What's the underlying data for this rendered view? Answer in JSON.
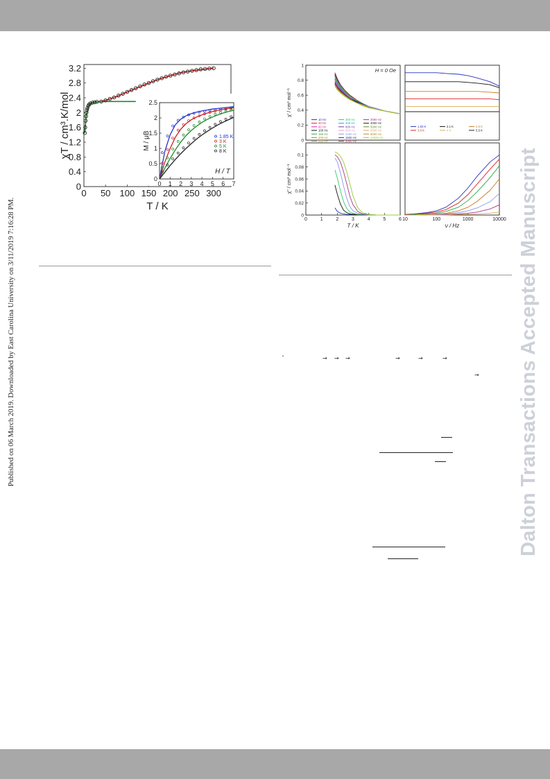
{
  "page": {
    "side_note": "Published on 06 March 2019. Downloaded by East Carolina University on 3/11/2019 7:16:28 PM.",
    "watermark": "Dalton Transactions Accepted Manuscript",
    "colors": {
      "header_bar": "#a8a8a8",
      "watermark": "#cdd0d8"
    }
  },
  "chart_data": [
    {
      "type": "scatter",
      "xlabel": "T / K",
      "ylabel": "χT / cm³.K/mol",
      "xlim": [
        0,
        340
      ],
      "ylim": [
        0,
        3.3
      ],
      "xticks": [
        "0",
        "50",
        "100",
        "150",
        "200",
        "250",
        "300"
      ],
      "yticks": [
        "0",
        "0.4",
        "0.8",
        "1.2",
        "1.6",
        "2",
        "2.4",
        "2.8",
        "3.2"
      ],
      "series": [
        {
          "color": "#222222",
          "markers": "open-circle",
          "x": [
            2,
            3,
            4,
            5,
            6,
            7,
            8,
            10,
            12,
            15,
            20,
            25,
            30,
            40,
            50,
            60,
            70,
            80,
            90,
            100,
            110,
            120,
            130,
            140,
            150,
            160,
            170,
            180,
            190,
            200,
            210,
            220,
            230,
            240,
            250,
            260,
            270,
            280,
            290,
            300
          ],
          "y": [
            1.45,
            1.6,
            1.78,
            1.9,
            2.0,
            2.07,
            2.12,
            2.18,
            2.22,
            2.25,
            2.27,
            2.28,
            2.29,
            2.3,
            2.33,
            2.37,
            2.41,
            2.46,
            2.51,
            2.56,
            2.61,
            2.66,
            2.71,
            2.76,
            2.8,
            2.85,
            2.89,
            2.93,
            2.97,
            3.0,
            3.03,
            3.06,
            3.09,
            3.11,
            3.13,
            3.15,
            3.17,
            3.18,
            3.19,
            3.2
          ]
        },
        {
          "color": "#cc2222",
          "line": true,
          "x": [
            2,
            5,
            10,
            15,
            20,
            30,
            40,
            50,
            75,
            100,
            125,
            150,
            175,
            200,
            225,
            250,
            275,
            300
          ],
          "y": [
            1.45,
            1.9,
            2.18,
            2.25,
            2.27,
            2.29,
            2.3,
            2.33,
            2.43,
            2.56,
            2.68,
            2.8,
            2.91,
            3.0,
            3.08,
            3.13,
            3.17,
            3.2
          ]
        },
        {
          "color": "#1a8a2a",
          "line": true,
          "x": [
            2,
            5,
            10,
            15,
            20,
            30,
            50,
            80,
            120
          ],
          "y": [
            1.45,
            1.9,
            2.18,
            2.25,
            2.27,
            2.29,
            2.3,
            2.3,
            2.3
          ]
        }
      ]
    },
    {
      "type": "line",
      "xlabel": "H / T",
      "ylabel": "M / μB",
      "xlim": [
        0,
        7
      ],
      "ylim": [
        0,
        2.5
      ],
      "xticks": [
        "0",
        "1",
        "2",
        "3",
        "4",
        "5",
        "6",
        "7"
      ],
      "yticks": [
        "0",
        "0.5",
        "1",
        "1.5",
        "2",
        "2.5"
      ],
      "x": [
        0,
        0.5,
        1,
        1.5,
        2,
        2.5,
        3,
        3.5,
        4,
        4.5,
        5,
        5.5,
        6,
        6.5,
        7
      ],
      "series": [
        {
          "name": "1.85 K",
          "color": "#2233cc",
          "y": [
            0,
            0.9,
            1.45,
            1.78,
            1.96,
            2.07,
            2.14,
            2.19,
            2.23,
            2.26,
            2.29,
            2.31,
            2.33,
            2.35,
            2.37
          ]
        },
        {
          "name": "3 K",
          "color": "#cc2222",
          "y": [
            0,
            0.55,
            1.0,
            1.37,
            1.63,
            1.81,
            1.94,
            2.03,
            2.1,
            2.16,
            2.21,
            2.25,
            2.28,
            2.31,
            2.34
          ]
        },
        {
          "name": "5 K",
          "color": "#1a8a2a",
          "y": [
            0,
            0.35,
            0.67,
            0.96,
            1.21,
            1.42,
            1.59,
            1.73,
            1.85,
            1.95,
            2.03,
            2.1,
            2.16,
            2.21,
            2.25
          ]
        },
        {
          "name": "8 K",
          "color": "#222222",
          "y": [
            0,
            0.22,
            0.44,
            0.64,
            0.83,
            1.0,
            1.16,
            1.31,
            1.44,
            1.56,
            1.67,
            1.77,
            1.86,
            1.94,
            2.02
          ]
        }
      ]
    },
    {
      "type": "line",
      "ylabel": "χ' / cm³ mol⁻¹",
      "annotation": "H = 0 Oe",
      "xlim": [
        0,
        6
      ],
      "ylim": [
        0,
        1
      ],
      "yticks": [
        "0",
        "0.2",
        "0.4",
        "0.6",
        "0.8",
        "1"
      ],
      "x": [
        1.85,
        2.0,
        2.2,
        2.5,
        2.8,
        3.2,
        3.6,
        4.0,
        4.5,
        5.0,
        5.5,
        6.0
      ],
      "series": [
        {
          "name": "10 Hz",
          "color": "#2233bb",
          "y": [
            0.9,
            0.82,
            0.74,
            0.66,
            0.6,
            0.54,
            0.49,
            0.45,
            0.42,
            0.39,
            0.37,
            0.35
          ]
        },
        {
          "name": "20 Hz",
          "color": "#dd2222",
          "y": [
            0.89,
            0.81,
            0.73,
            0.66,
            0.6,
            0.54,
            0.49,
            0.45,
            0.42,
            0.39,
            0.37,
            0.35
          ]
        },
        {
          "name": "60 Hz",
          "color": "#dd22aa",
          "y": [
            0.88,
            0.8,
            0.73,
            0.65,
            0.59,
            0.53,
            0.49,
            0.45,
            0.42,
            0.39,
            0.37,
            0.35
          ]
        },
        {
          "name": "100 Hz",
          "color": "#111111",
          "y": [
            0.87,
            0.8,
            0.72,
            0.65,
            0.59,
            0.53,
            0.49,
            0.45,
            0.42,
            0.39,
            0.37,
            0.35
          ]
        },
        {
          "name": "150 Hz",
          "color": "#22aa44",
          "y": [
            0.86,
            0.79,
            0.72,
            0.65,
            0.59,
            0.53,
            0.49,
            0.45,
            0.42,
            0.39,
            0.37,
            0.35
          ]
        },
        {
          "name": "200 Hz",
          "color": "#cc7722",
          "y": [
            0.85,
            0.78,
            0.71,
            0.64,
            0.58,
            0.53,
            0.48,
            0.45,
            0.42,
            0.39,
            0.37,
            0.35
          ]
        },
        {
          "name": "250 Hz",
          "color": "#999933",
          "y": [
            0.84,
            0.78,
            0.71,
            0.64,
            0.58,
            0.53,
            0.48,
            0.45,
            0.42,
            0.39,
            0.37,
            0.35
          ]
        },
        {
          "name": "300 Hz",
          "color": "#33cc66",
          "y": [
            0.83,
            0.77,
            0.7,
            0.64,
            0.58,
            0.53,
            0.48,
            0.45,
            0.42,
            0.39,
            0.37,
            0.35
          ]
        },
        {
          "name": "400 Hz",
          "color": "#22aacc",
          "y": [
            0.82,
            0.76,
            0.7,
            0.63,
            0.58,
            0.52,
            0.48,
            0.45,
            0.42,
            0.39,
            0.37,
            0.35
          ]
        },
        {
          "name": "600 Hz",
          "color": "#7733aa",
          "y": [
            0.81,
            0.75,
            0.69,
            0.63,
            0.57,
            0.52,
            0.48,
            0.45,
            0.42,
            0.39,
            0.37,
            0.35
          ]
        },
        {
          "name": "800 Hz",
          "color": "#ee99cc",
          "y": [
            0.8,
            0.74,
            0.68,
            0.62,
            0.57,
            0.52,
            0.48,
            0.45,
            0.42,
            0.39,
            0.37,
            0.35
          ]
        },
        {
          "name": "1000 Hz",
          "color": "#8899ee",
          "y": [
            0.79,
            0.73,
            0.68,
            0.62,
            0.57,
            0.52,
            0.48,
            0.45,
            0.42,
            0.39,
            0.37,
            0.35
          ]
        },
        {
          "name": "1500 Hz",
          "color": "#223388",
          "y": [
            0.78,
            0.72,
            0.67,
            0.61,
            0.56,
            0.52,
            0.48,
            0.44,
            0.41,
            0.39,
            0.37,
            0.35
          ]
        },
        {
          "name": "2000 Hz",
          "color": "#cc2244",
          "y": [
            0.77,
            0.72,
            0.66,
            0.61,
            0.56,
            0.51,
            0.47,
            0.44,
            0.41,
            0.39,
            0.37,
            0.35
          ]
        },
        {
          "name": "3000 Hz",
          "color": "#aa3388",
          "y": [
            0.76,
            0.71,
            0.65,
            0.6,
            0.55,
            0.51,
            0.47,
            0.44,
            0.41,
            0.39,
            0.37,
            0.35
          ]
        },
        {
          "name": "4000 Hz",
          "color": "#222222",
          "y": [
            0.75,
            0.7,
            0.65,
            0.6,
            0.55,
            0.51,
            0.47,
            0.44,
            0.41,
            0.39,
            0.37,
            0.35
          ]
        },
        {
          "name": "5000 Hz",
          "color": "#668833",
          "y": [
            0.74,
            0.69,
            0.64,
            0.59,
            0.55,
            0.5,
            0.47,
            0.44,
            0.41,
            0.39,
            0.37,
            0.35
          ]
        },
        {
          "name": "6000 Hz",
          "color": "#ddaa55",
          "y": [
            0.74,
            0.69,
            0.64,
            0.59,
            0.54,
            0.5,
            0.47,
            0.44,
            0.41,
            0.39,
            0.37,
            0.35
          ]
        },
        {
          "name": "8000 Hz",
          "color": "#bb8833",
          "y": [
            0.73,
            0.68,
            0.63,
            0.58,
            0.54,
            0.5,
            0.46,
            0.44,
            0.41,
            0.39,
            0.37,
            0.35
          ]
        },
        {
          "name": "10000 Hz",
          "color": "#99cc33",
          "y": [
            0.72,
            0.67,
            0.63,
            0.58,
            0.54,
            0.5,
            0.46,
            0.43,
            0.41,
            0.39,
            0.37,
            0.35
          ]
        }
      ]
    },
    {
      "type": "line",
      "xlabel": "T / K",
      "ylabel": "χ'' / cm³ mol⁻¹",
      "xlim": [
        0,
        6
      ],
      "ylim": [
        0,
        0.12
      ],
      "xticks": [
        "0",
        "1",
        "2",
        "3",
        "4",
        "5",
        "6"
      ],
      "yticks": [
        "0",
        "0.02",
        "0.04",
        "0.06",
        "0.08",
        "0.1"
      ],
      "x": [
        1.85,
        2.0,
        2.2,
        2.4,
        2.6,
        2.8,
        3.0,
        3.3,
        3.6,
        4.0,
        4.5,
        5.0,
        6.0
      ],
      "series": [
        {
          "name": "10 Hz",
          "color": "#2233bb",
          "y": [
            0.012,
            0.006,
            0.003,
            0.002,
            0.001,
            0.001,
            0.001,
            0.001,
            0.001,
            0.0,
            0.0,
            0.0,
            0.0
          ]
        },
        {
          "name": "100 Hz",
          "color": "#111111",
          "y": [
            0.05,
            0.035,
            0.018,
            0.008,
            0.004,
            0.002,
            0.001,
            0.001,
            0.001,
            0.0,
            0.0,
            0.0,
            0.0
          ]
        },
        {
          "name": "300 Hz",
          "color": "#33cc66",
          "y": [
            0.075,
            0.062,
            0.04,
            0.022,
            0.011,
            0.005,
            0.003,
            0.001,
            0.001,
            0.0,
            0.0,
            0.0,
            0.0
          ]
        },
        {
          "name": "1000 Hz",
          "color": "#8899ee",
          "y": [
            0.095,
            0.088,
            0.07,
            0.048,
            0.028,
            0.014,
            0.007,
            0.003,
            0.001,
            0.001,
            0.0,
            0.0,
            0.0
          ]
        },
        {
          "name": "3000 Hz",
          "color": "#aa3388",
          "y": [
            0.1,
            0.097,
            0.088,
            0.072,
            0.052,
            0.031,
            0.017,
            0.006,
            0.002,
            0.001,
            0.0,
            0.0,
            0.0
          ]
        },
        {
          "name": "10000 Hz",
          "color": "#99cc33",
          "y": [
            0.105,
            0.103,
            0.098,
            0.088,
            0.072,
            0.052,
            0.032,
            0.012,
            0.004,
            0.001,
            0.0,
            0.0,
            0.0
          ]
        }
      ]
    },
    {
      "type": "line",
      "xscale": "log",
      "xlim": [
        10,
        10000
      ],
      "ylim": [
        0,
        1
      ],
      "x": [
        10,
        20,
        50,
        100,
        200,
        500,
        1000,
        2000,
        5000,
        10000
      ],
      "series": [
        {
          "name": "1.83 K",
          "color": "#2233bb",
          "y": [
            0.9,
            0.9,
            0.9,
            0.9,
            0.89,
            0.88,
            0.86,
            0.83,
            0.78,
            0.72
          ]
        },
        {
          "name": "2.1 K",
          "color": "#111111",
          "y": [
            0.78,
            0.78,
            0.78,
            0.78,
            0.78,
            0.78,
            0.77,
            0.76,
            0.74,
            0.7
          ]
        },
        {
          "name": "2.5 K",
          "color": "#cc7722",
          "y": [
            0.65,
            0.65,
            0.65,
            0.65,
            0.65,
            0.65,
            0.65,
            0.65,
            0.64,
            0.63
          ]
        },
        {
          "name": "3.0 K",
          "color": "#dd2222",
          "y": [
            0.55,
            0.55,
            0.55,
            0.55,
            0.55,
            0.55,
            0.55,
            0.55,
            0.55,
            0.54
          ]
        },
        {
          "name": "4 K",
          "color": "#ddaa55",
          "y": [
            0.45,
            0.45,
            0.45,
            0.45,
            0.45,
            0.45,
            0.45,
            0.45,
            0.45,
            0.45
          ]
        },
        {
          "name": "5.5 K",
          "color": "#222222",
          "y": [
            0.38,
            0.38,
            0.38,
            0.38,
            0.38,
            0.38,
            0.38,
            0.38,
            0.38,
            0.38
          ]
        }
      ]
    },
    {
      "type": "line",
      "xscale": "log",
      "xlabel": "ν / Hz",
      "xlim": [
        10,
        10000
      ],
      "ylim": [
        0,
        0.12
      ],
      "xticks": [
        "10",
        "100",
        "1000",
        "10000"
      ],
      "x": [
        10,
        20,
        50,
        100,
        200,
        500,
        1000,
        2000,
        5000,
        10000
      ],
      "series": [
        {
          "name": "1.83 K",
          "color": "#2233bb",
          "y": [
            0.001,
            0.002,
            0.004,
            0.007,
            0.013,
            0.028,
            0.045,
            0.065,
            0.088,
            0.1
          ]
        },
        {
          "name": "2.0 K",
          "color": "#dd2222",
          "y": [
            0.001,
            0.001,
            0.003,
            0.005,
            0.009,
            0.02,
            0.034,
            0.052,
            0.076,
            0.093
          ]
        },
        {
          "name": "2.2 K",
          "color": "#22aa44",
          "y": [
            0.0,
            0.001,
            0.002,
            0.003,
            0.006,
            0.013,
            0.024,
            0.039,
            0.062,
            0.082
          ]
        },
        {
          "name": "2.5 K",
          "color": "#cc7722",
          "y": [
            0.0,
            0.0,
            0.001,
            0.002,
            0.003,
            0.007,
            0.013,
            0.023,
            0.041,
            0.06
          ]
        },
        {
          "name": "2.8 K",
          "color": "#8899ee",
          "y": [
            0.0,
            0.0,
            0.0,
            0.001,
            0.002,
            0.004,
            0.007,
            0.012,
            0.022,
            0.036
          ]
        },
        {
          "name": "3.2 K",
          "color": "#aa3388",
          "y": [
            0.0,
            0.0,
            0.0,
            0.0,
            0.001,
            0.002,
            0.003,
            0.005,
            0.01,
            0.017
          ]
        },
        {
          "name": "4 K",
          "color": "#ddaa55",
          "y": [
            0.0,
            0.0,
            0.0,
            0.0,
            0.0,
            0.001,
            0.001,
            0.002,
            0.003,
            0.005
          ]
        }
      ]
    }
  ]
}
